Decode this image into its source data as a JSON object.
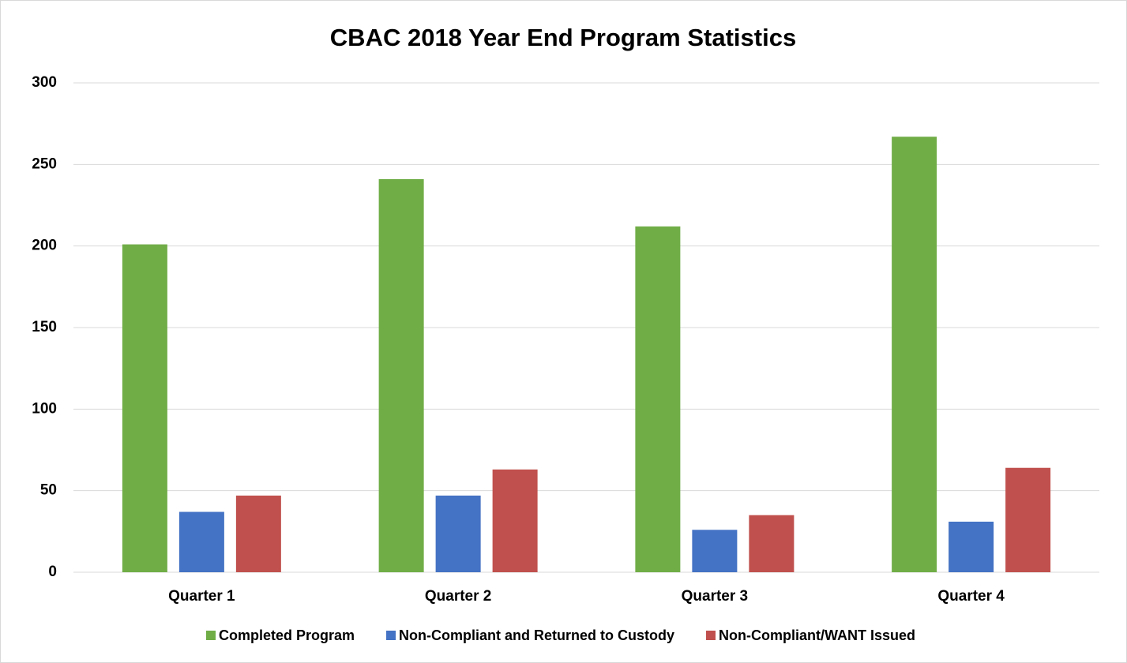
{
  "chart_data": {
    "type": "bar",
    "title": "CBAC 2018 Year End Program Statistics",
    "categories": [
      "Quarter 1",
      "Quarter 2",
      "Quarter 3",
      "Quarter 4"
    ],
    "series": [
      {
        "name": "Completed Program",
        "color": "#70ad47",
        "values": [
          201,
          241,
          212,
          267
        ]
      },
      {
        "name": "Non-Compliant and Returned to Custody",
        "color": "#4472c4",
        "values": [
          37,
          47,
          26,
          31
        ]
      },
      {
        "name": "Non-Compliant/WANT Issued",
        "color": "#c0504d",
        "values": [
          47,
          63,
          35,
          64
        ]
      }
    ],
    "ylim": [
      0,
      300
    ],
    "yticks": [
      0,
      50,
      100,
      150,
      200,
      250,
      300
    ],
    "grid": true,
    "legend": "bottom"
  }
}
